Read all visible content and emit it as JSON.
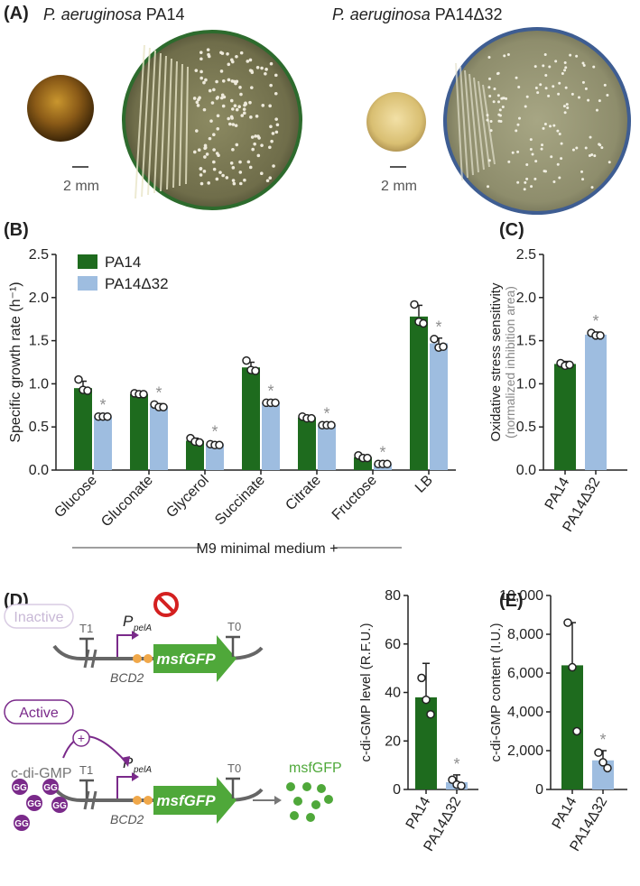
{
  "colors": {
    "pa14": "#1e6b1e",
    "delta32": "#9ebde0",
    "star": "#8f8f8f",
    "purple": "#7a2a8a",
    "gfp": "#4fa83a"
  },
  "panel_a": {
    "label": "(A)",
    "left_title_species": "P. aeruginosa",
    "left_title_strain": "PA14",
    "right_title_species": "P. aeruginosa",
    "right_title_strain": "PA14Δ32",
    "scale_left": "2 mm",
    "scale_right": "2 mm"
  },
  "panel_b": {
    "label": "(B)",
    "ylabel": "Specific growth rate (h⁻¹)",
    "yticks": [
      "0.0",
      "0.5",
      "1.0",
      "1.5",
      "2.0",
      "2.5"
    ],
    "legend": [
      "PA14",
      "PA14Δ32"
    ],
    "group_label": "M9 minimal medium +"
  },
  "panel_c": {
    "label": "(C)",
    "ylabel_main": "Oxidative stress sensitivity",
    "ylabel_sub": "(normalized inhibition area)",
    "yticks": [
      "0.0",
      "0.5",
      "1.0",
      "1.5",
      "2.0",
      "2.5"
    ]
  },
  "panel_d": {
    "label": "(D)",
    "inactive": "Inactive",
    "active": "Active",
    "t1": "T1",
    "t0": "T0",
    "promoter": "P",
    "promoter_sub": "pelA",
    "bcd": "BCD2",
    "gene": "msfGFP",
    "cdg": "c-di-GMP",
    "gg": "GG",
    "plus": "+",
    "msfgfp_out": "msfGFP",
    "ylabel": "c-di-GMP level (R.F.U.)",
    "yticks": [
      "0",
      "20",
      "40",
      "60",
      "80"
    ]
  },
  "panel_e": {
    "label": "(E)",
    "ylabel": "c-di-GMP content (I.U.)",
    "yticks": [
      "0",
      "2,000",
      "4,000",
      "6,000",
      "8,000",
      "10,000"
    ]
  },
  "chart_data": [
    {
      "type": "bar",
      "panel": "B",
      "ylabel": "Specific growth rate (h⁻¹)",
      "ylim": [
        0,
        2.5
      ],
      "categories": [
        "Glucose",
        "Gluconate",
        "Glycerol",
        "Succinate",
        "Citrate",
        "Fructose",
        "LB"
      ],
      "series": [
        {
          "name": "PA14",
          "values": [
            0.95,
            0.88,
            0.34,
            1.19,
            0.61,
            0.15,
            1.78
          ],
          "err": [
            0.08,
            0.02,
            0.03,
            0.06,
            0.02,
            0.02,
            0.13
          ],
          "points": [
            [
              1.05,
              0.93,
              0.92
            ],
            [
              0.89,
              0.88,
              0.88
            ],
            [
              0.37,
              0.33,
              0.32
            ],
            [
              1.27,
              1.16,
              1.15
            ],
            [
              0.62,
              0.6,
              0.6
            ],
            [
              0.17,
              0.14,
              0.14
            ],
            [
              1.92,
              1.72,
              1.7
            ]
          ]
        },
        {
          "name": "PA14Δ32",
          "values": [
            0.62,
            0.74,
            0.3,
            0.78,
            0.52,
            0.07,
            1.47
          ],
          "err": [
            0.01,
            0.03,
            0.02,
            0.01,
            0.01,
            0.01,
            0.06
          ],
          "sig": true,
          "points": [
            [
              0.62,
              0.62,
              0.62
            ],
            [
              0.76,
              0.73,
              0.73
            ],
            [
              0.3,
              0.29,
              0.29
            ],
            [
              0.78,
              0.78,
              0.78
            ],
            [
              0.52,
              0.52,
              0.52
            ],
            [
              0.07,
              0.07,
              0.07
            ],
            [
              1.52,
              1.42,
              1.43
            ]
          ]
        }
      ]
    },
    {
      "type": "bar",
      "panel": "C",
      "ylabel": "Oxidative stress sensitivity (normalized inhibition area)",
      "ylim": [
        0,
        2.5
      ],
      "categories": [
        "PA14",
        "PA14Δ32"
      ],
      "values": [
        1.23,
        1.57
      ],
      "err": [
        0.03,
        0.03
      ],
      "sig": [
        false,
        true
      ],
      "points": [
        [
          1.24,
          1.21,
          1.22
        ],
        [
          1.59,
          1.56,
          1.56
        ]
      ]
    },
    {
      "type": "bar",
      "panel": "D",
      "ylabel": "c-di-GMP level (R.F.U.)",
      "ylim": [
        0,
        80
      ],
      "categories": [
        "PA14",
        "PA14Δ32"
      ],
      "values": [
        38,
        3
      ],
      "err": [
        14,
        3
      ],
      "sig": [
        false,
        true
      ],
      "points": [
        [
          46,
          37,
          31
        ],
        [
          4,
          2,
          1.5
        ]
      ]
    },
    {
      "type": "bar",
      "panel": "E",
      "ylabel": "c-di-GMP content (I.U.)",
      "ylim": [
        0,
        10000
      ],
      "categories": [
        "PA14",
        "PA14Δ32"
      ],
      "values": [
        6400,
        1500
      ],
      "err": [
        2200,
        500
      ],
      "sig": [
        false,
        true
      ],
      "points": [
        [
          8600,
          6300,
          3000
        ],
        [
          1900,
          1400,
          1100
        ]
      ]
    }
  ]
}
